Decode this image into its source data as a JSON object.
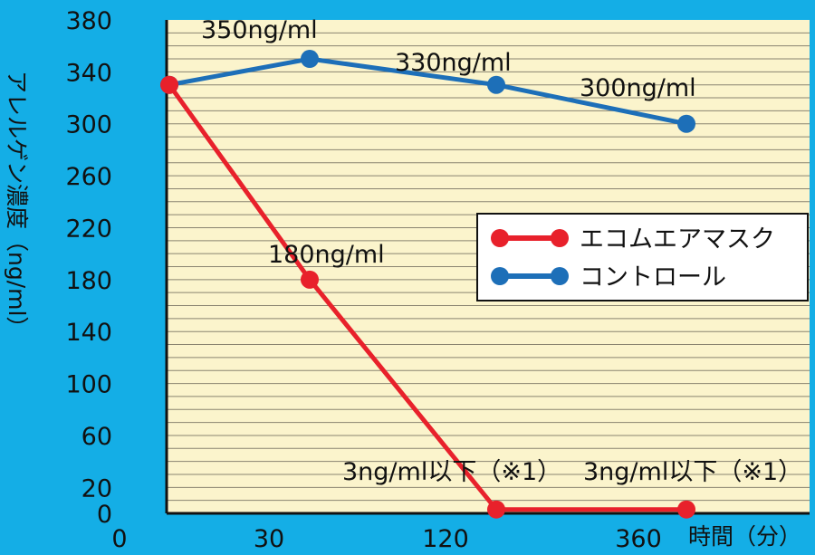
{
  "chart_data": {
    "type": "line",
    "ylabel": "アレルゲン濃度（ng/ml）",
    "xlabel": "時間（分）",
    "x_ticks": [
      "0",
      "30",
      "120",
      "360"
    ],
    "y_ticks": [
      380,
      340,
      300,
      260,
      220,
      180,
      140,
      100,
      60,
      20,
      0
    ],
    "ylim": [
      0,
      380
    ],
    "grid": true,
    "legend_position": "right",
    "series": [
      {
        "name": "エコムエアマスク",
        "color": "#e8212b",
        "x": [
          "0",
          "30",
          "120",
          "360"
        ],
        "values": [
          330,
          180,
          3,
          3
        ]
      },
      {
        "name": "コントロール",
        "color": "#1d6fb8",
        "x": [
          "0",
          "30",
          "120",
          "360"
        ],
        "values": [
          330,
          350,
          330,
          300
        ]
      }
    ],
    "annotations": [
      {
        "text": "350ng/ml"
      },
      {
        "text": "330ng/ml"
      },
      {
        "text": "300ng/ml"
      },
      {
        "text": "180ng/ml"
      },
      {
        "text": "3ng/ml以下（※1）"
      },
      {
        "text": "3ng/ml以下（※1）"
      }
    ]
  }
}
